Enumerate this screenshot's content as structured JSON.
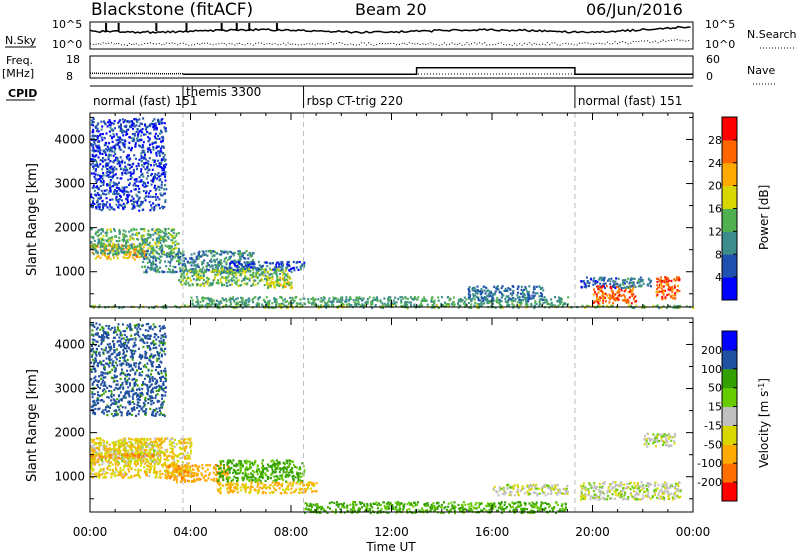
{
  "header": {
    "title": "Blackstone (fitACF)",
    "beam": "Beam 20",
    "date": "06/Jun/2016"
  },
  "summary_panels": {
    "nsky_label": "N.Sky",
    "nsearch_label": "N.Search",
    "noise_ticks_left": [
      "10^5",
      "10^0"
    ],
    "noise_ticks_right": [
      "10^5",
      "10^0"
    ],
    "freq_label": "Freq.",
    "freq_unit": "[MHz]",
    "freq_ticks": [
      "18",
      "8"
    ],
    "nave_label": "Nave",
    "nave_ticks": [
      "60",
      "0"
    ],
    "cpid_label": "CPID",
    "freq_series": [
      {
        "t": 0.0,
        "mhz": 10.2
      },
      {
        "t": 1.0,
        "mhz": 10.0
      },
      {
        "t": 2.0,
        "mhz": 10.1
      },
      {
        "t": 3.0,
        "mhz": 9.9
      },
      {
        "t": 3.7,
        "mhz": 10.0
      }
    ],
    "nave_series": [
      {
        "t": 3.7,
        "n": 10
      },
      {
        "t": 13.0,
        "n": 10
      },
      {
        "t": 13.0,
        "n": 28
      },
      {
        "t": 19.3,
        "n": 28
      },
      {
        "t": 19.3,
        "n": 10
      },
      {
        "t": 24.0,
        "n": 10
      }
    ]
  },
  "cpid": [
    {
      "label": "normal (fast) 151",
      "start": 0.0
    },
    {
      "label": "themis 3300",
      "start": 3.7
    },
    {
      "label": "rbsp CT-trig 220",
      "start": 8.5
    },
    {
      "label": "normal (fast) 151",
      "start": 19.3
    }
  ],
  "power_colorbar": {
    "label": "Power [dB]",
    "ticks": [
      "4",
      "8",
      "12",
      "16",
      "20",
      "24",
      "28"
    ],
    "colors": [
      "#0000ff",
      "#2050b0",
      "#3c8c8c",
      "#50b050",
      "#d8d800",
      "#ffaa00",
      "#ff6600",
      "#ff0000"
    ]
  },
  "velocity_colorbar": {
    "label": "Velocity [m s",
    "label_sup": "-1",
    "label_end": "]",
    "ticks": [
      "-200",
      "-100",
      "-50",
      "-15",
      "15",
      "50",
      "100",
      "200"
    ],
    "colors": [
      "#ff0000",
      "#ff7000",
      "#ffaa00",
      "#d8d800",
      "#c0c0c0",
      "#66cc00",
      "#33a000",
      "#2050a0",
      "#0000ff"
    ]
  },
  "axes": {
    "ylabel": "Slant Range [km]",
    "yticks": [
      "1000",
      "2000",
      "3000",
      "4000"
    ],
    "xticks": [
      "00:00",
      "04:00",
      "08:00",
      "12:00",
      "16:00",
      "20:00",
      "00:00"
    ],
    "xlabel": "Time UT"
  },
  "chart_data": {
    "type": "heatmap",
    "title": "Blackstone (fitACF)",
    "x_unit": "hours UT",
    "xlim": [
      0,
      24
    ],
    "ylim": [
      200,
      4600
    ],
    "ylabel": "Slant Range [km]",
    "xlabel": "Time UT",
    "panels": [
      {
        "name": "power",
        "unit": "dB",
        "range": [
          0,
          32
        ],
        "features": [
          {
            "t": [
              0.0,
              2.2
            ],
            "r": [
              1300,
              1650
            ],
            "value": 22
          },
          {
            "t": [
              0.0,
              3.5
            ],
            "r": [
              1400,
              2000
            ],
            "value": 13
          },
          {
            "t": [
              2.0,
              6.5
            ],
            "r": [
              1000,
              1500
            ],
            "value": 10
          },
          {
            "t": [
              3.5,
              8.0
            ],
            "r": [
              700,
              1100
            ],
            "value": 14
          },
          {
            "t": [
              5.5,
              8.5
            ],
            "r": [
              1050,
              1250
            ],
            "value": 6
          },
          {
            "t": [
              7.0,
              8.0
            ],
            "r": [
              650,
              900
            ],
            "value": 18
          },
          {
            "t": [
              0.0,
              3.0
            ],
            "r": [
              2400,
              4500
            ],
            "value": 5
          },
          {
            "t": [
              4.0,
              19.0
            ],
            "r": [
              250,
              450
            ],
            "value": 12
          },
          {
            "t": [
              15.0,
              18.0
            ],
            "r": [
              350,
              700
            ],
            "value": 8
          },
          {
            "t": [
              19.5,
              21.0
            ],
            "r": [
              650,
              900
            ],
            "value": 6
          },
          {
            "t": [
              20.0,
              21.7
            ],
            "r": [
              300,
              700
            ],
            "value": 26
          },
          {
            "t": [
              21.0,
              22.3
            ],
            "r": [
              650,
              900
            ],
            "value": 10
          },
          {
            "t": [
              22.5,
              23.5
            ],
            "r": [
              400,
              900
            ],
            "value": 26
          },
          {
            "t": [
              0.0,
              24.0
            ],
            "r": [
              200,
              260
            ],
            "value": 14
          }
        ]
      },
      {
        "name": "velocity",
        "unit": "m/s",
        "range": [
          -250,
          250
        ],
        "features": [
          {
            "t": [
              0.0,
              2.8
            ],
            "r": [
              1300,
              1800
            ],
            "value": 0
          },
          {
            "t": [
              0.0,
              2.8
            ],
            "r": [
              1450,
              1550
            ],
            "value": -120
          },
          {
            "t": [
              0.0,
              4.0
            ],
            "r": [
              1000,
              1900
            ],
            "value": -40
          },
          {
            "t": [
              3.0,
              5.5
            ],
            "r": [
              900,
              1300
            ],
            "value": -80
          },
          {
            "t": [
              5.0,
              8.5
            ],
            "r": [
              900,
              1400
            ],
            "value": 60
          },
          {
            "t": [
              5.0,
              9.0
            ],
            "r": [
              650,
              900
            ],
            "value": -60
          },
          {
            "t": [
              0.0,
              3.0
            ],
            "r": [
              2400,
              4500
            ],
            "value": 120
          },
          {
            "t": [
              8.5,
              19.0
            ],
            "r": [
              200,
              450
            ],
            "value": 60
          },
          {
            "t": [
              16.0,
              19.0
            ],
            "r": [
              600,
              850
            ],
            "value": 0
          },
          {
            "t": [
              19.5,
              23.5
            ],
            "r": [
              500,
              900
            ],
            "value": 0
          },
          {
            "t": [
              22.0,
              23.3
            ],
            "r": [
              1700,
              2000
            ],
            "value": 0
          }
        ]
      }
    ]
  }
}
